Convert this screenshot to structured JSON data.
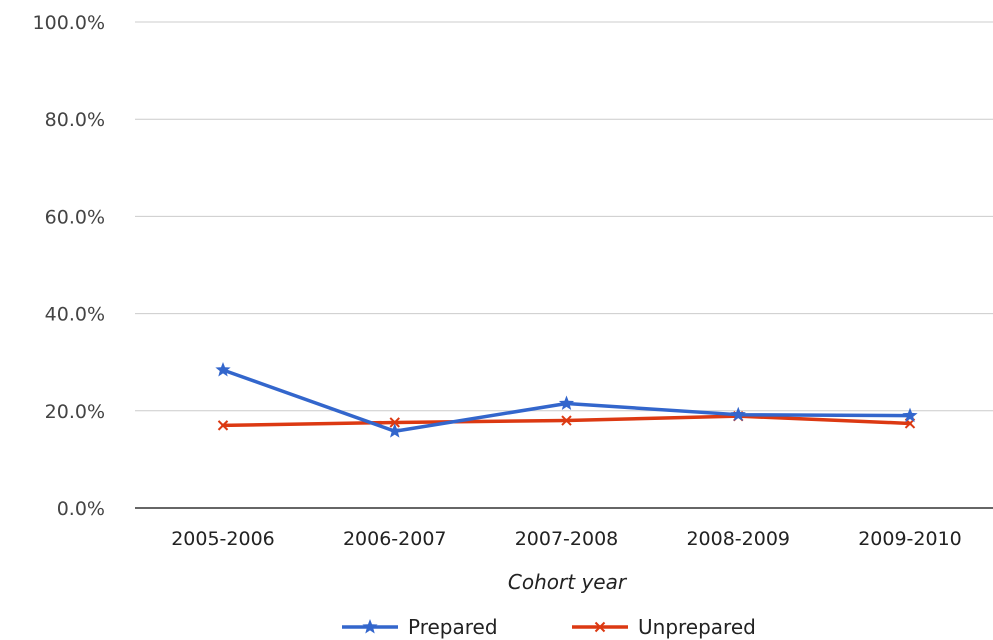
{
  "chart_data": {
    "type": "line",
    "title": "",
    "xlabel": "Cohort year",
    "ylabel": "",
    "categories": [
      "2005-2006",
      "2006-2007",
      "2007-2008",
      "2008-2009",
      "2009-2010"
    ],
    "ylim": [
      0,
      100
    ],
    "yticks": [
      "0.0%",
      "20.0%",
      "40.0%",
      "60.0%",
      "80.0%",
      "100.0%"
    ],
    "grid": true,
    "legend_position": "bottom",
    "series": [
      {
        "name": "Prepared",
        "color": "#3366cc",
        "marker": "star",
        "values": [
          28.4,
          15.8,
          21.5,
          19.2,
          19.0
        ]
      },
      {
        "name": "Unprepared",
        "color": "#dc3912",
        "marker": "x",
        "values": [
          17.0,
          17.6,
          18.0,
          18.9,
          17.4
        ]
      }
    ]
  }
}
